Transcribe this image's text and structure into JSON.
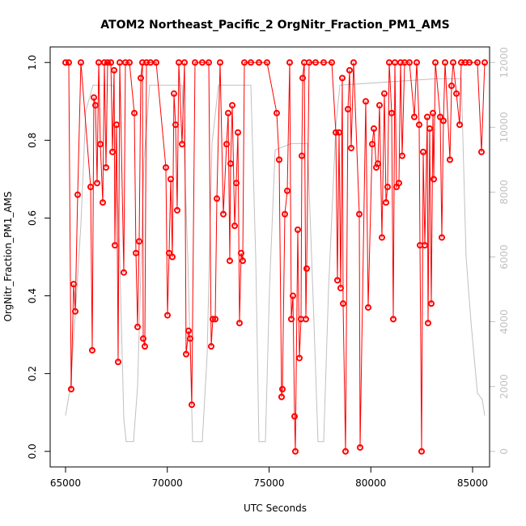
{
  "chart_data": {
    "type": "line",
    "title": "ATOM2 Northeast_Pacific_2 OrgNitr_Fraction_PM1_AMS",
    "x_label": "UTC Seconds",
    "y_label": "OrgNitr_Fraction_PM1_AMS",
    "xlim": [
      64245,
      85835
    ],
    "ylim": [
      -0.04,
      1.04
    ],
    "y2lim": [
      -480,
      12480
    ],
    "xticks": [
      65000,
      70000,
      75000,
      80000,
      85000
    ],
    "yticks": [
      {
        "value": 0,
        "label": "0.0"
      },
      0.2,
      0.4,
      0.6,
      0.8,
      {
        "value": 1,
        "label": "1.0"
      }
    ],
    "y2ticks": [
      0,
      2000,
      4000,
      6000,
      8000,
      10000,
      12000
    ],
    "series": [
      {
        "color": "#c0c0c0",
        "axis": "y2",
        "x": [
          65000,
          65239,
          65557,
          65755,
          65994,
          66352,
          67346,
          67664,
          67863,
          67982,
          68340,
          68539,
          68857,
          69135,
          70725,
          71004,
          71243,
          71719,
          71958,
          72197,
          72515,
          74105,
          74344,
          74503,
          74821,
          75020,
          75298,
          76093,
          76888,
          77206,
          77405,
          77683,
          77922,
          78280,
          78479,
          83250,
          84443,
          84681,
          84920,
          85238,
          85477,
          85596
        ],
        "values": [
          1100,
          2000,
          5000,
          7000,
          10500,
          11300,
          11300,
          6000,
          1000,
          300,
          300,
          2000,
          9000,
          11300,
          11300,
          6000,
          300,
          300,
          3000,
          9500,
          11300,
          11300,
          6000,
          300,
          300,
          5000,
          9300,
          9500,
          9500,
          4000,
          300,
          300,
          5000,
          10000,
          11300,
          11500,
          11500,
          6000,
          4000,
          1800,
          1600,
          1100
        ]
      },
      {
        "color": "#ff0000",
        "x": [
          65000,
          65159,
          65278,
          65398,
          65477,
          65596,
          65755,
          66233,
          66312,
          66392,
          66471,
          66551,
          66630,
          66710,
          66829,
          66908,
          66988,
          67068,
          67227,
          67306,
          67386,
          67425,
          67505,
          67584,
          67664,
          67863,
          67942,
          68141,
          68380,
          68459,
          68539,
          68618,
          68698,
          68777,
          68817,
          68896,
          68976,
          69175,
          69453,
          69930,
          70010,
          70089,
          70169,
          70248,
          70328,
          70407,
          70487,
          70566,
          70725,
          70845,
          70924,
          71044,
          71123,
          71203,
          71362,
          71719,
          72038,
          72157,
          72236,
          72356,
          72435,
          72594,
          72753,
          72912,
          72992,
          73071,
          73111,
          73191,
          73310,
          73389,
          73469,
          73548,
          73628,
          73707,
          73787,
          74105,
          74503,
          74900,
          75377,
          75497,
          75616,
          75656,
          75775,
          75894,
          76014,
          76093,
          76173,
          76252,
          76292,
          76411,
          76491,
          76570,
          76610,
          76650,
          76729,
          76809,
          76848,
          76968,
          77286,
          77683,
          78081,
          78280,
          78359,
          78439,
          78518,
          78598,
          78638,
          78757,
          78876,
          78956,
          79035,
          79155,
          79433,
          79473,
          79751,
          79870,
          80069,
          80149,
          80268,
          80347,
          80427,
          80546,
          80665,
          80745,
          80824,
          80904,
          81023,
          81103,
          81182,
          81262,
          81381,
          81461,
          81540,
          81659,
          81898,
          82137,
          82256,
          82375,
          82415,
          82494,
          82574,
          82654,
          82773,
          82812,
          82892,
          82972,
          83051,
          83091,
          83171,
          83409,
          83488,
          83568,
          83648,
          83886,
          83966,
          84045,
          84204,
          84363,
          84443,
          84641,
          84840,
          85238,
          85437,
          85596
        ],
        "values": [
          1,
          1,
          0.16,
          0.43,
          0.36,
          0.66,
          1,
          0.68,
          0.26,
          0.91,
          0.89,
          0.69,
          1,
          0.79,
          0.64,
          1,
          0.73,
          1,
          1,
          0.77,
          0.98,
          0.53,
          0.84,
          0.23,
          1,
          0.46,
          1,
          1,
          0.87,
          0.51,
          0.32,
          0.54,
          0.96,
          1,
          0.29,
          0.27,
          1,
          1,
          1,
          0.73,
          0.35,
          0.51,
          0.7,
          0.5,
          0.92,
          0.84,
          0.62,
          1,
          0.79,
          1,
          0.25,
          0.31,
          0.29,
          0.12,
          1,
          1,
          1,
          0.27,
          0.34,
          0.34,
          0.65,
          1,
          0.61,
          0.79,
          0.87,
          0.49,
          0.74,
          0.89,
          0.58,
          0.69,
          0.82,
          0.33,
          0.51,
          0.49,
          1,
          1,
          1,
          1,
          0.87,
          0.75,
          0.14,
          0.16,
          0.61,
          0.67,
          1,
          0.34,
          0.4,
          0.09,
          0,
          0.57,
          0.24,
          0.34,
          0.76,
          0.96,
          1,
          0.34,
          0.47,
          1,
          1,
          1,
          1,
          0.82,
          0.44,
          0.82,
          0.42,
          0.96,
          0.38,
          0,
          0.88,
          0.98,
          0.78,
          1,
          0.61,
          0.01,
          0.9,
          0.37,
          0.79,
          0.83,
          0.73,
          0.74,
          0.89,
          0.55,
          0.92,
          0.64,
          0.68,
          1,
          0.87,
          0.34,
          1,
          0.68,
          0.69,
          1,
          0.76,
          1,
          1,
          0.86,
          1,
          0.84,
          0.53,
          0,
          0.77,
          0.53,
          0.86,
          0.33,
          0.83,
          0.38,
          0.87,
          0.7,
          1,
          0.86,
          0.55,
          0.85,
          1,
          0.75,
          0.94,
          1,
          0.92,
          0.84,
          1,
          1,
          1,
          1,
          0.77,
          1
        ]
      }
    ]
  }
}
